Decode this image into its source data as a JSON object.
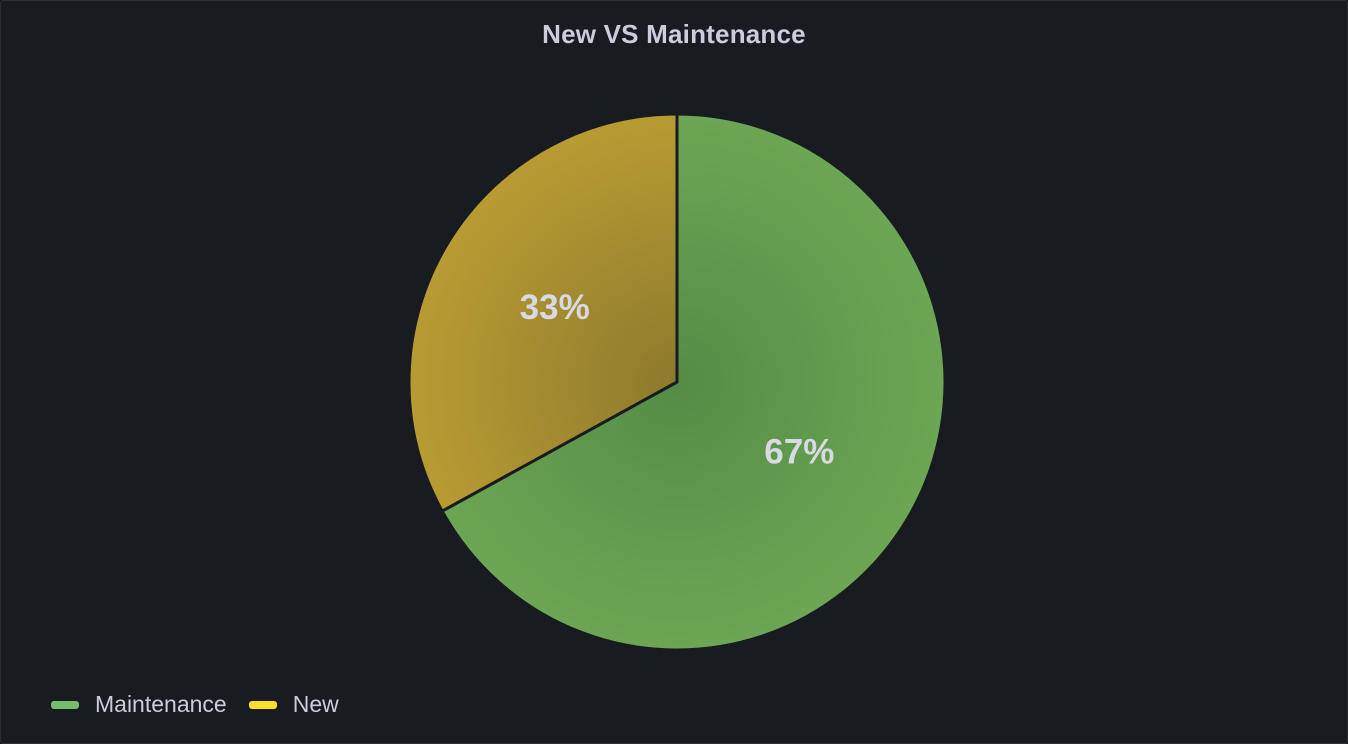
{
  "panel": {
    "title": "New VS Maintenance"
  },
  "chart_data": {
    "type": "pie",
    "title": "New VS Maintenance",
    "legend_position": "bottom-left",
    "slices": [
      {
        "name": "Maintenance",
        "value": 67,
        "label": "67%",
        "color": "#73bf69"
      },
      {
        "name": "New",
        "value": 33,
        "label": "33%",
        "color": "#c9a22a"
      }
    ]
  },
  "legend": {
    "items": [
      {
        "label": "Maintenance",
        "color": "#73bf69"
      },
      {
        "label": "New",
        "color": "#fade2a"
      }
    ]
  }
}
